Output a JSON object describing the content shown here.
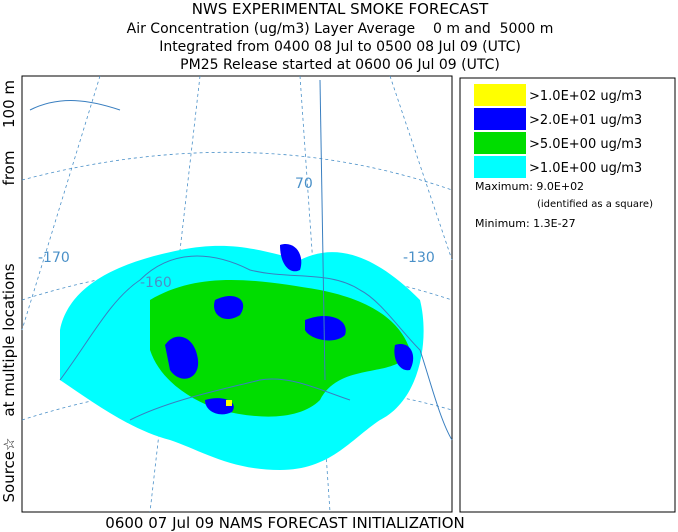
{
  "header": {
    "title": "NWS EXPERIMENTAL SMOKE FORECAST",
    "lines": [
      "Air Concentration (ug/m3) Layer Average    0 m and  5000 m",
      "Integrated from 0400 08 Jul to 0500 08 Jul 09 (UTC)",
      "PM25 Release started at 0600 06 Jul 09 (UTC)"
    ]
  },
  "side_label": [
    "Source☆",
    "at multiple locations",
    "from",
    "100 m"
  ],
  "map_labels": [
    "-170",
    "-160",
    "70",
    "-130"
  ],
  "legend": {
    "entries": [
      {
        "label": ">1.0E+02 ug/m3",
        "color": "#ffff00"
      },
      {
        "label": ">2.0E+01 ug/m3",
        "color": "#0000ff"
      },
      {
        "label": ">5.0E+00 ug/m3",
        "color": "#00dd00"
      },
      {
        "label": ">1.0E+00 ug/m3",
        "color": "#00ffff"
      }
    ],
    "maximum": "Maximum: 9.0E+02",
    "maximum_note": "(identified as a square)",
    "minimum": "Minimum: 1.3E-27"
  },
  "footer": "0600 07 Jul 09 NAMS FORECAST INITIALIZATION"
}
